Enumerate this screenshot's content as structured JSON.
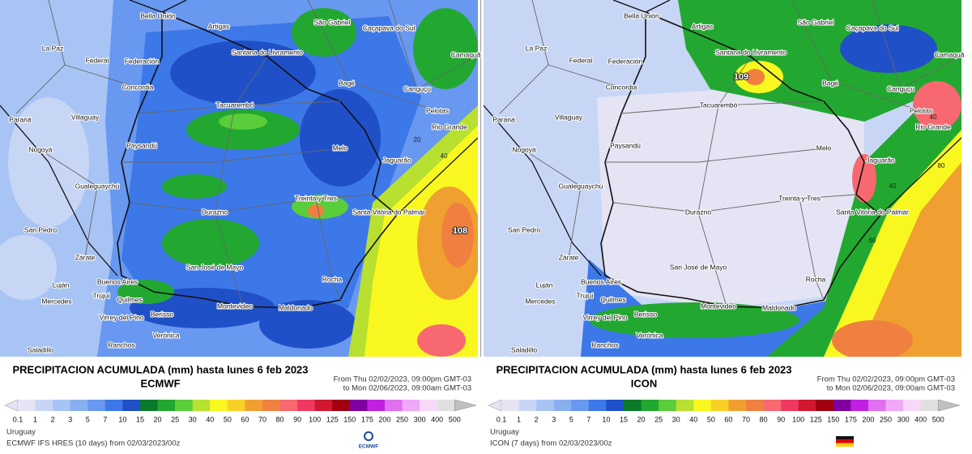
{
  "cities": [
    "Bella Unión",
    "Artigas",
    "São Gabriel",
    "Caçapava do Sul",
    "Santana do Livramento",
    "La Paz",
    "Federal",
    "Federación",
    "Camaquã",
    "Concordia",
    "Bagé",
    "Canguçu",
    "Tacuarembó",
    "Paraná",
    "Villaguay",
    "Pelotas",
    "Rio Grande",
    "Nogoyá",
    "Paysandú",
    "Melo",
    "Jaguarão",
    "Gualeguaychú",
    "Treinta y Tres",
    "Santa Vitória do Palmar",
    "Durazno",
    "San Pedro",
    "Zárate",
    "San José de Mayo",
    "Buenos Aires",
    "Luján",
    "Rocha",
    "Trujui",
    "Mercedes",
    "Quilmes",
    "Montevideo",
    "Maldonado",
    "Virrey del Pino",
    "Berisso",
    "Verónica",
    "Ranchos",
    "Saladillo"
  ],
  "scale": {
    "labels": [
      "0.1",
      "1",
      "2",
      "3",
      "5",
      "7",
      "10",
      "15",
      "20",
      "25",
      "30",
      "40",
      "50",
      "60",
      "70",
      "80",
      "90",
      "100",
      "125",
      "150",
      "175",
      "200",
      "250",
      "300",
      "400",
      "500"
    ],
    "colors": [
      "#e4e4f4",
      "#c8d6f6",
      "#a8c4f4",
      "#88b0f0",
      "#6898f0",
      "#3c78e8",
      "#2050c8",
      "#0a7a2a",
      "#22a830",
      "#5acd3a",
      "#b8e030",
      "#f8f820",
      "#f8d028",
      "#f0a030",
      "#f08040",
      "#f86870",
      "#f03860",
      "#d01830",
      "#a00010",
      "#8000a0",
      "#c020e0",
      "#e070f0",
      "#f0a8f8",
      "#f8d8f8",
      "#e0e0e0"
    ]
  },
  "panels": [
    {
      "title": "PRECIPITACION ACUMULADA (mm) hasta lunes 6 feb 2023",
      "model": "ECMWF",
      "from": "From Thu 02/02/2023, 09:00pm GMT-03",
      "to": "to Mon 02/06/2023, 09:00am GMT-03",
      "region": "Uruguay",
      "footer": "ECMWF IFS HRES (10 days) from 02/03/2023/00z",
      "max_label": "108",
      "contour_labels": [
        "40",
        "20"
      ],
      "logo": "ECMWF"
    },
    {
      "title": "PRECIPITACION ACUMULADA (mm) hasta lunes 6 feb 2023",
      "model": "ICON",
      "from": "From Thu 02/02/2023, 09:00pm GMT-03",
      "to": "to Mon 02/06/2023, 09:00am GMT-03",
      "region": "Uruguay",
      "footer": "ICON (7 days) from 02/03/2023/00z",
      "max_label": "109",
      "contour_labels": [
        "40",
        "80",
        "40",
        "60"
      ]
    }
  ]
}
